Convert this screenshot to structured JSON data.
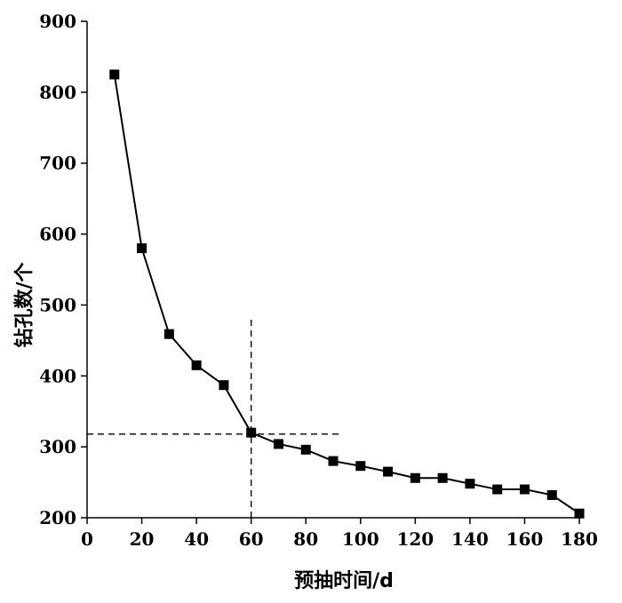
{
  "chart_data": {
    "type": "line",
    "title": "",
    "xlabel": "预抽时间/d",
    "ylabel": "钻孔数/个",
    "xlim": [
      0,
      180
    ],
    "ylim": [
      200,
      900
    ],
    "xticks": [
      0,
      20,
      40,
      60,
      80,
      100,
      120,
      140,
      160,
      180
    ],
    "yticks": [
      200,
      300,
      400,
      500,
      600,
      700,
      800,
      900
    ],
    "grid": false,
    "legend": "none",
    "marker": "square",
    "series": [
      {
        "x": [
          10,
          20,
          30,
          40,
          50,
          60,
          70,
          80,
          90,
          100,
          110,
          120,
          130,
          140,
          150,
          160,
          170,
          180
        ],
        "y": [
          825,
          580,
          459,
          415,
          387,
          320,
          304,
          296,
          280,
          273,
          265,
          256,
          256,
          248,
          240,
          240,
          232,
          206
        ]
      }
    ],
    "guides": {
      "vertical": {
        "x": 60,
        "y_from": 200,
        "y_to": 480
      },
      "horizontal": {
        "y": 318,
        "x_from": 0,
        "x_to": 93
      }
    }
  }
}
